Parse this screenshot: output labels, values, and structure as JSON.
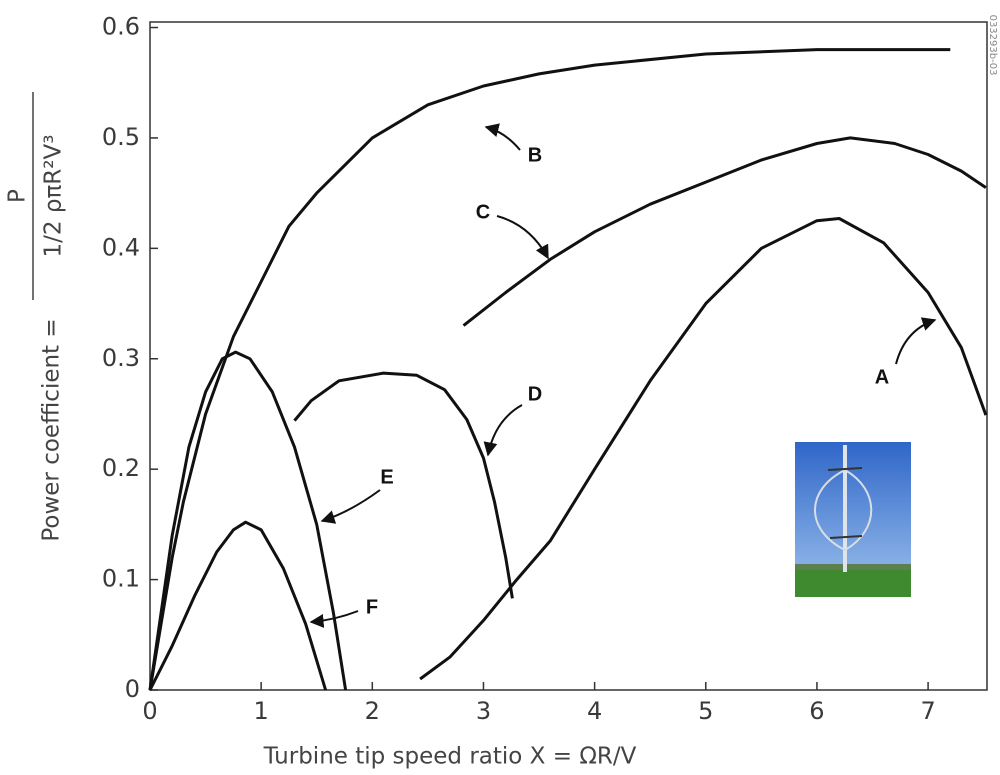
{
  "chart_data": {
    "type": "line",
    "xlabel": "Turbine tip speed ratio X = ΩR/V",
    "ylabel": "Power coefficient =",
    "ylabel_numerator": "P",
    "ylabel_denominator": "1/2 ρπR²V³",
    "figure_id": "033293b-03",
    "xlim": [
      0,
      7.53
    ],
    "ylim": [
      0,
      0.605
    ],
    "xticks": [
      0,
      1,
      2,
      3,
      4,
      5,
      6,
      7
    ],
    "yticks": [
      0,
      0.1,
      0.2,
      0.3,
      0.4,
      0.5,
      0.6
    ],
    "grid": false,
    "series": [
      {
        "name": "B",
        "color": "#111111",
        "x": [
          0,
          0.1,
          0.2,
          0.3,
          0.5,
          0.75,
          1,
          1.25,
          1.5,
          2,
          2.5,
          3,
          3.5,
          4,
          5,
          6,
          7.2
        ],
        "values": [
          0,
          0.06,
          0.12,
          0.17,
          0.25,
          0.32,
          0.37,
          0.42,
          0.45,
          0.5,
          0.53,
          0.547,
          0.558,
          0.566,
          0.576,
          0.58,
          0.58
        ]
      },
      {
        "name": "C",
        "color": "#111111",
        "x": [
          2.82,
          3.2,
          3.6,
          4,
          4.5,
          5,
          5.5,
          6,
          6.3,
          6.7,
          7,
          7.3,
          7.52
        ],
        "values": [
          0.33,
          0.36,
          0.39,
          0.415,
          0.44,
          0.46,
          0.48,
          0.495,
          0.5,
          0.495,
          0.485,
          0.47,
          0.455
        ]
      },
      {
        "name": "A",
        "color": "#111111",
        "x": [
          2.43,
          2.7,
          3,
          3.3,
          3.6,
          4,
          4.5,
          5,
          5.5,
          6,
          6.2,
          6.6,
          7,
          7.3,
          7.52
        ],
        "values": [
          0.01,
          0.03,
          0.063,
          0.1,
          0.135,
          0.2,
          0.28,
          0.35,
          0.4,
          0.425,
          0.427,
          0.405,
          0.36,
          0.31,
          0.249
        ]
      },
      {
        "name": "D",
        "color": "#111111",
        "x": [
          1.3,
          1.45,
          1.7,
          2.1,
          2.4,
          2.65,
          2.85,
          3,
          3.1,
          3.2,
          3.26
        ],
        "values": [
          0.244,
          0.262,
          0.28,
          0.287,
          0.285,
          0.272,
          0.245,
          0.21,
          0.17,
          0.12,
          0.083
        ]
      },
      {
        "name": "E",
        "color": "#111111",
        "x": [
          0,
          0.1,
          0.2,
          0.35,
          0.5,
          0.65,
          0.77,
          0.9,
          1.1,
          1.3,
          1.5,
          1.65,
          1.76
        ],
        "values": [
          0,
          0.07,
          0.14,
          0.22,
          0.27,
          0.3,
          0.306,
          0.3,
          0.27,
          0.22,
          0.15,
          0.07,
          0
        ]
      },
      {
        "name": "F",
        "color": "#111111",
        "x": [
          0,
          0.2,
          0.4,
          0.6,
          0.75,
          0.86,
          1,
          1.2,
          1.4,
          1.58
        ],
        "values": [
          0,
          0.04,
          0.085,
          0.125,
          0.145,
          0.152,
          0.145,
          0.11,
          0.06,
          0
        ]
      }
    ]
  }
}
